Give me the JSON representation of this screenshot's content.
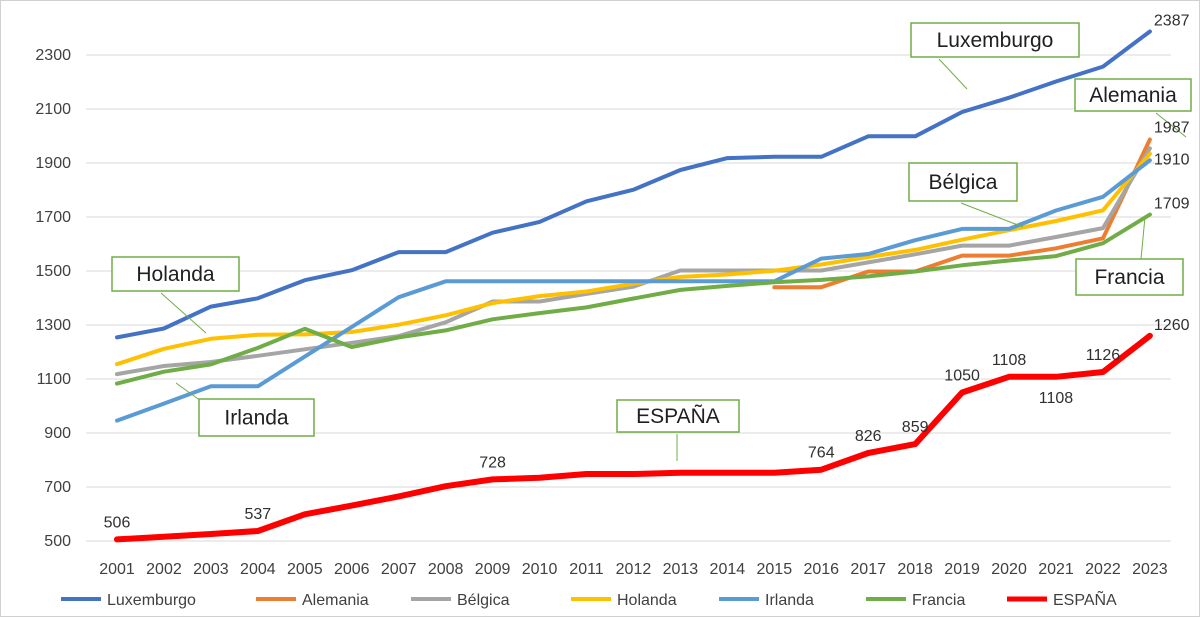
{
  "chart_data": {
    "type": "line",
    "title": "",
    "xlabel": "",
    "ylabel": "",
    "ylim": [
      500,
      2400
    ],
    "yticks": [
      500,
      700,
      900,
      1100,
      1300,
      1500,
      1700,
      1900,
      2100,
      2300
    ],
    "grid": true,
    "legend_position": "bottom",
    "x": [
      "2001",
      "2002",
      "2003",
      "2004",
      "2005",
      "2006",
      "2007",
      "2008",
      "2009",
      "2010",
      "2011",
      "2012",
      "2013",
      "2014",
      "2015",
      "2016",
      "2017",
      "2018",
      "2019",
      "2020",
      "2021",
      "2022",
      "2023"
    ],
    "series": [
      {
        "name": "Luxemburgo",
        "color": "#4472c4",
        "width": 4,
        "values": [
          1254,
          1287,
          1368,
          1399,
          1466,
          1503,
          1570,
          1570,
          1642,
          1682,
          1758,
          1801,
          1874,
          1918,
          1923,
          1923,
          1999,
          1999,
          2089,
          2142,
          2202,
          2257,
          2387
        ]
      },
      {
        "name": "Alemania",
        "color": "#ed7d31",
        "width": 4,
        "values": [
          null,
          null,
          null,
          null,
          null,
          null,
          null,
          null,
          null,
          null,
          null,
          null,
          null,
          null,
          1440,
          1440,
          1498,
          1498,
          1557,
          1557,
          1584,
          1621,
          1987
        ]
      },
      {
        "name": "Bélgica",
        "color": "#a5a5a5",
        "width": 4,
        "values": [
          1118,
          1148,
          1163,
          1186,
          1210,
          1234,
          1259,
          1310,
          1387,
          1387,
          1415,
          1442,
          1502,
          1502,
          1502,
          1502,
          1532,
          1562,
          1594,
          1594,
          1626,
          1659,
          1954
        ]
      },
      {
        "name": "Holanda",
        "color": "#ffc000",
        "width": 4,
        "values": [
          1155,
          1212,
          1249,
          1264,
          1265,
          1274,
          1301,
          1336,
          1381,
          1407,
          1424,
          1453,
          1478,
          1487,
          1501,
          1524,
          1552,
          1578,
          1616,
          1651,
          1685,
          1725,
          1934
        ]
      },
      {
        "name": "Irlanda",
        "color": "#5b9bd5",
        "width": 4,
        "values": [
          946,
          1009,
          1073,
          1073,
          1183,
          1293,
          1403,
          1462,
          1462,
          1462,
          1462,
          1462,
          1462,
          1462,
          1462,
          1546,
          1563,
          1614,
          1656,
          1656,
          1724,
          1775,
          1910
        ]
      },
      {
        "name": "Francia",
        "color": "#70ad47",
        "width": 4,
        "values": [
          1083,
          1127,
          1154,
          1215,
          1286,
          1218,
          1254,
          1280,
          1321,
          1344,
          1365,
          1398,
          1430,
          1445,
          1458,
          1467,
          1480,
          1498,
          1521,
          1539,
          1555,
          1603,
          1709
        ]
      },
      {
        "name": "ESPAÑA",
        "color": "#ff0000",
        "width": 6,
        "values": [
          506,
          516,
          526,
          537,
          599,
          631,
          665,
          703,
          728,
          734,
          748,
          748,
          753,
          753,
          753,
          764,
          826,
          859,
          1050,
          1108,
          1108,
          1126,
          1260
        ]
      }
    ],
    "data_labels": [
      {
        "series": "ESPAÑA",
        "index": 0,
        "text": "506",
        "pos": "above"
      },
      {
        "series": "ESPAÑA",
        "index": 3,
        "text": "537",
        "pos": "above"
      },
      {
        "series": "ESPAÑA",
        "index": 8,
        "text": "728",
        "pos": "above"
      },
      {
        "series": "ESPAÑA",
        "index": 15,
        "text": "764",
        "pos": "above"
      },
      {
        "series": "ESPAÑA",
        "index": 16,
        "text": "826",
        "pos": "above"
      },
      {
        "series": "ESPAÑA",
        "index": 17,
        "text": "859",
        "pos": "above"
      },
      {
        "series": "ESPAÑA",
        "index": 18,
        "text": "1050",
        "pos": "above"
      },
      {
        "series": "ESPAÑA",
        "index": 19,
        "text": "1108",
        "pos": "above"
      },
      {
        "series": "ESPAÑA",
        "index": 20,
        "text": "1108",
        "pos": "below"
      },
      {
        "series": "ESPAÑA",
        "index": 21,
        "text": "1126",
        "pos": "above"
      },
      {
        "series": "ESPAÑA",
        "index": 22,
        "text": "1260",
        "pos": "right"
      },
      {
        "series": "Luxemburgo",
        "index": 22,
        "text": "2387",
        "pos": "right"
      },
      {
        "series": "Alemania",
        "index": 22,
        "text": "1987",
        "pos": "right"
      },
      {
        "series": "Irlanda",
        "index": 22,
        "text": "1910",
        "pos": "right"
      },
      {
        "series": "Francia",
        "index": 22,
        "text": "1709",
        "pos": "right"
      }
    ],
    "annotations": [
      {
        "text": "Luxemburgo",
        "series": "Luxemburgo"
      },
      {
        "text": "Alemania",
        "series": "Alemania"
      },
      {
        "text": "Bélgica",
        "series": "Bélgica"
      },
      {
        "text": "Holanda",
        "series": "Holanda"
      },
      {
        "text": "Irlanda",
        "series": "Irlanda"
      },
      {
        "text": "Francia",
        "series": "Francia"
      },
      {
        "text": "ESPAÑA",
        "series": "ESPAÑA"
      }
    ]
  }
}
